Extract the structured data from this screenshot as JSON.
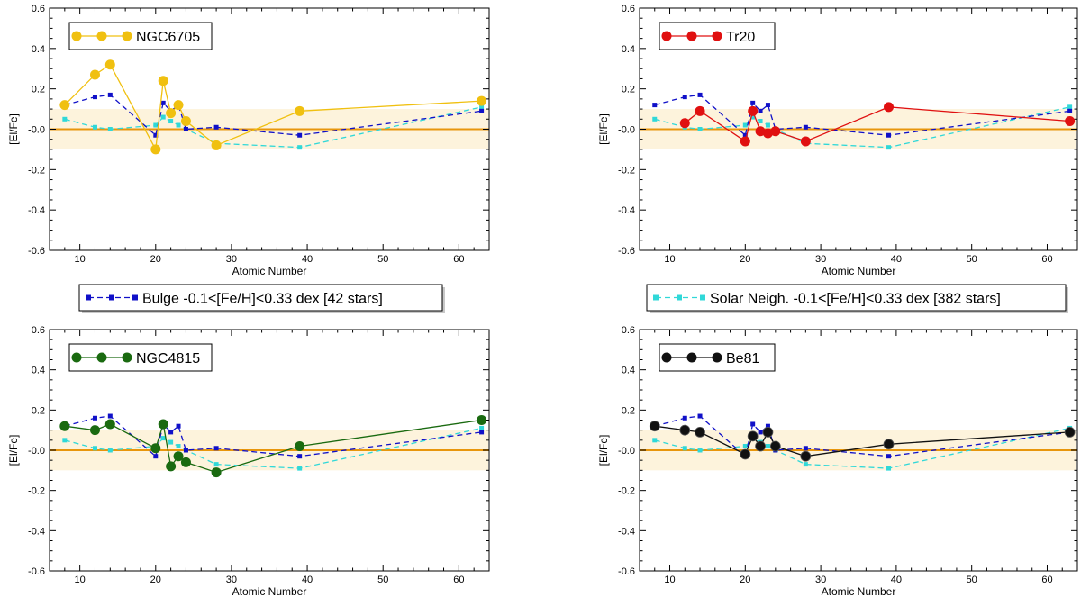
{
  "chart_data": {
    "type": "line",
    "shared": {
      "ylabel": "[El/Fe]",
      "xlabel": "Atomic Number",
      "xlim": [
        6,
        64
      ],
      "ylim": [
        -0.6,
        0.6
      ],
      "xticks": [
        10,
        20,
        30,
        40,
        50,
        60
      ],
      "yticks": [
        0.6,
        0.4,
        0.2,
        0.0,
        -0.2,
        -0.4,
        -0.6
      ],
      "ytick_labels": [
        "0.6",
        "0.4",
        "0.2",
        "-0.0",
        "-0.2",
        "-0.4",
        "-0.6"
      ],
      "band": [
        -0.1,
        0.1
      ],
      "band_color": "#fdf3dc",
      "zero_line_color": "#e8960c"
    },
    "reference_series": [
      {
        "name": "Bulge -0.1<[Fe/H]<0.33 dex [42 stars]",
        "color": "#1010c8",
        "x": [
          8,
          12,
          14,
          20,
          21,
          22,
          23,
          24,
          28,
          39,
          63
        ],
        "y": [
          0.12,
          0.16,
          0.17,
          -0.03,
          0.13,
          0.09,
          0.12,
          0.0,
          0.01,
          -0.03,
          0.09
        ]
      },
      {
        "name": "Solar Neigh. -0.1<[Fe/H]<0.33 dex [382 stars]",
        "color": "#30d8d8",
        "x": [
          8,
          12,
          14,
          20,
          21,
          22,
          23,
          24,
          28,
          39,
          63
        ],
        "y": [
          0.05,
          0.01,
          0.0,
          0.02,
          0.06,
          0.04,
          0.02,
          0.0,
          -0.07,
          -0.09,
          0.11
        ]
      }
    ],
    "panels": [
      {
        "cluster": "NGC6705",
        "color": "#f0c010",
        "x": [
          8,
          12,
          14,
          20,
          21,
          22,
          23,
          24,
          28,
          39,
          63
        ],
        "y": [
          0.12,
          0.27,
          0.32,
          -0.1,
          0.24,
          0.08,
          0.12,
          0.04,
          -0.08,
          0.09,
          0.14
        ]
      },
      {
        "cluster": "Tr20",
        "color": "#e01010",
        "x": [
          12,
          14,
          20,
          21,
          22,
          23,
          24,
          28,
          39,
          63
        ],
        "y": [
          0.03,
          0.09,
          -0.06,
          0.09,
          -0.01,
          -0.02,
          -0.01,
          -0.06,
          0.11,
          0.04
        ]
      },
      {
        "cluster": "NGC4815",
        "color": "#1a6a10",
        "x": [
          8,
          12,
          14,
          20,
          21,
          22,
          23,
          24,
          28,
          39,
          63
        ],
        "y": [
          0.12,
          0.1,
          0.13,
          0.01,
          0.13,
          -0.08,
          -0.03,
          -0.06,
          -0.11,
          0.02,
          0.15
        ]
      },
      {
        "cluster": "Be81",
        "color": "#111111",
        "x": [
          8,
          12,
          14,
          20,
          21,
          22,
          23,
          24,
          28,
          39,
          63
        ],
        "y": [
          0.12,
          0.1,
          0.09,
          -0.02,
          0.07,
          0.02,
          0.09,
          0.02,
          -0.03,
          0.03,
          0.09
        ]
      }
    ]
  }
}
